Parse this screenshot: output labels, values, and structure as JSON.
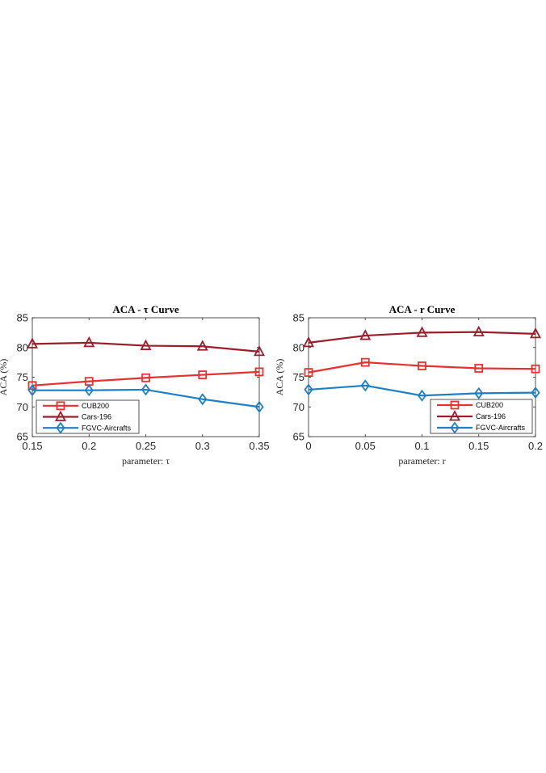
{
  "chart_data": [
    {
      "type": "line",
      "title": "ACA - τ Curve",
      "xlabel": "parameter: τ",
      "ylabel": "ACA (%)",
      "x": [
        0.15,
        0.2,
        0.25,
        0.3,
        0.35
      ],
      "xticks": [
        "0.15",
        "0.2",
        "0.25",
        "0.3",
        "0.35"
      ],
      "xlim": [
        0.15,
        0.35
      ],
      "yticks": [
        "65",
        "70",
        "75",
        "80",
        "85"
      ],
      "ylim": [
        65,
        85
      ],
      "legend_position": "bottom-left",
      "series": [
        {
          "name": "CUB200",
          "color": "#e8302f",
          "marker": "square",
          "values": [
            73.6,
            74.3,
            74.9,
            75.4,
            75.9
          ]
        },
        {
          "name": "Cars-196",
          "color": "#9b1d2a",
          "marker": "triangle",
          "values": [
            80.6,
            80.8,
            80.3,
            80.2,
            79.3
          ]
        },
        {
          "name": "FGVC-Aircrafts",
          "color": "#1e7fc4",
          "marker": "diamond",
          "values": [
            72.8,
            72.8,
            72.9,
            71.3,
            70.0
          ]
        }
      ]
    },
    {
      "type": "line",
      "title": "ACA - r Curve",
      "xlabel": "parameter: r",
      "ylabel": "ACA (%)",
      "x": [
        0,
        0.05,
        0.1,
        0.15,
        0.2
      ],
      "xticks": [
        "0",
        "0.05",
        "0.1",
        "0.15",
        "0.2"
      ],
      "xlim": [
        0,
        0.2
      ],
      "yticks": [
        "65",
        "70",
        "75",
        "80",
        "85"
      ],
      "ylim": [
        65,
        85
      ],
      "legend_position": "bottom-right",
      "series": [
        {
          "name": "CUB200",
          "color": "#e8302f",
          "marker": "square",
          "values": [
            75.8,
            77.5,
            76.9,
            76.5,
            76.4
          ]
        },
        {
          "name": "Cars-196",
          "color": "#9b1d2a",
          "marker": "triangle",
          "values": [
            80.8,
            82.0,
            82.5,
            82.6,
            82.3
          ]
        },
        {
          "name": "FGVC-Aircrafts",
          "color": "#1e7fc4",
          "marker": "diamond",
          "values": [
            72.9,
            73.6,
            71.9,
            72.3,
            72.4
          ]
        }
      ]
    }
  ]
}
